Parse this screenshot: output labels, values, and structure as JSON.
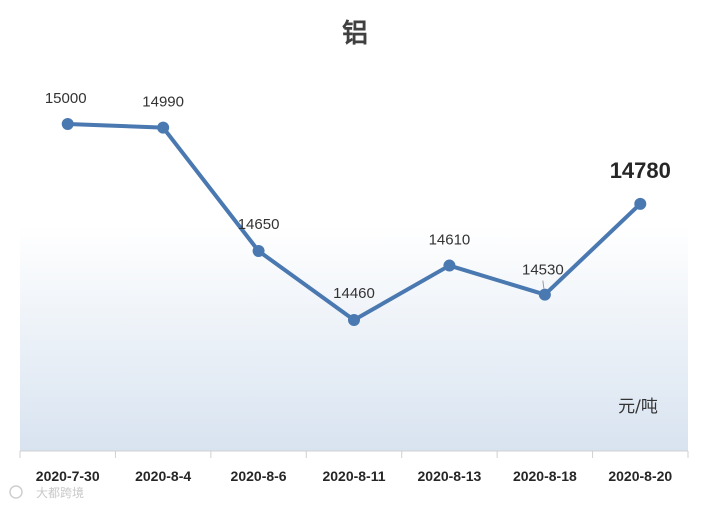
{
  "chart_data": {
    "type": "line",
    "title": "铝",
    "unit_label": "元/吨",
    "categories": [
      "2020-7-30",
      "2020-8-4",
      "2020-8-6",
      "2020-8-11",
      "2020-8-13",
      "2020-8-18",
      "2020-8-20"
    ],
    "series": [
      {
        "values": [
          15000,
          14990,
          14650,
          14460,
          14610,
          14530,
          14780
        ]
      }
    ],
    "highlight_last_label": true,
    "grid": false,
    "line_color": "#4a78b0",
    "plot_gradient": [
      "#ffffff",
      "#d8e3f0"
    ]
  },
  "watermark": "大都跨境"
}
